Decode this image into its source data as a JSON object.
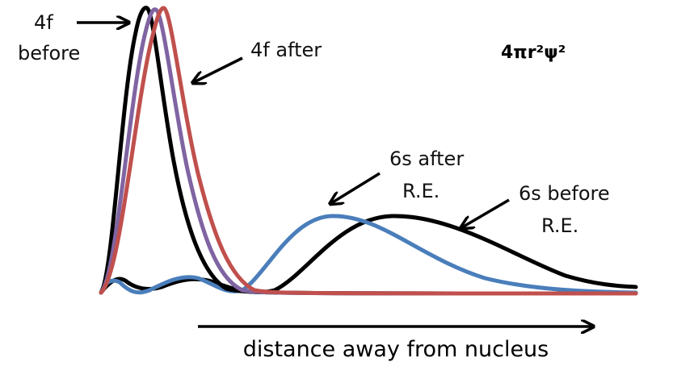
{
  "labels": {
    "f4_before": [
      "4f",
      "before"
    ],
    "f4_after": "4f  after",
    "function": "4πr²ψ²",
    "s6_after": [
      "6s  after",
      "R.E."
    ],
    "s6_before": [
      "6s  before",
      "R.E."
    ],
    "x_axis": "distance away from nucleus"
  }
}
